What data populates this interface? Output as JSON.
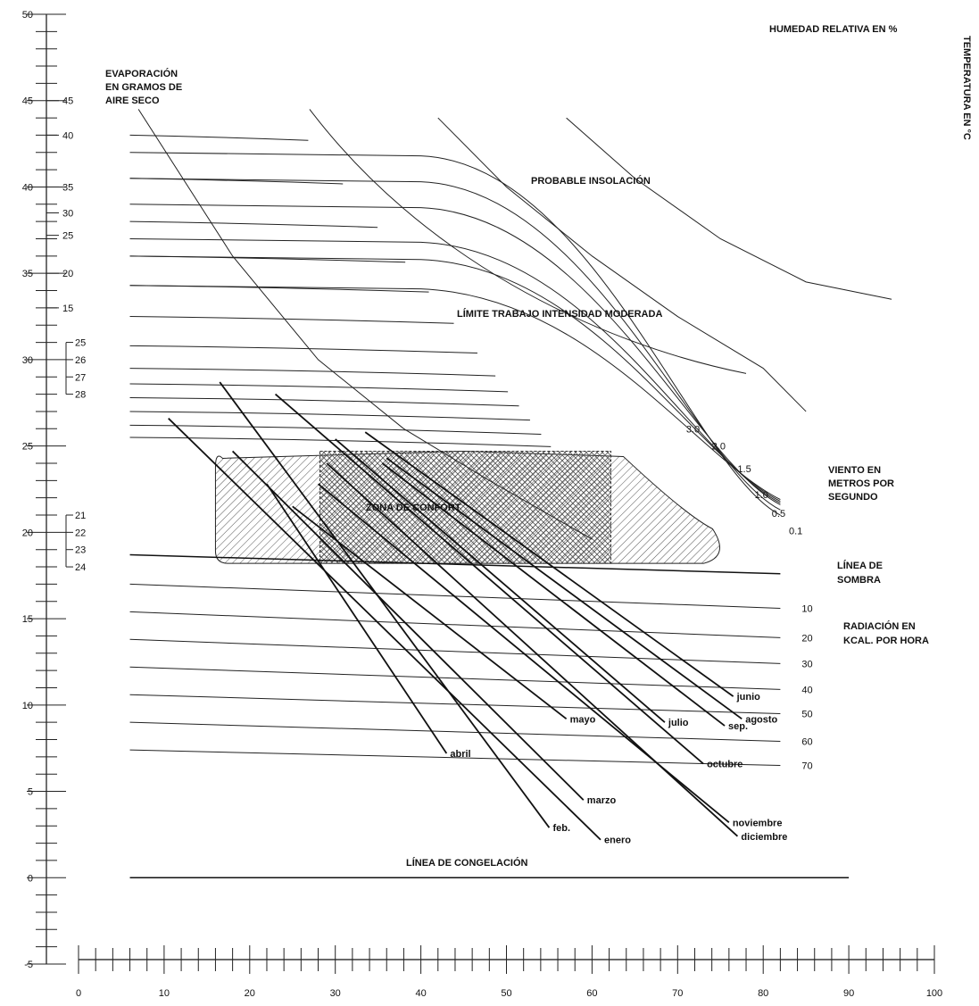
{
  "chart_data": {
    "type": "line",
    "title": "",
    "y_axis": {
      "ylim": [
        -5,
        50
      ],
      "ticks": [
        50,
        45,
        40,
        35,
        30,
        25,
        20,
        15,
        10,
        5,
        0,
        -5
      ]
    },
    "x_axis": {
      "xlim": [
        0,
        100
      ],
      "ticks": [
        0,
        10,
        20,
        30,
        40,
        50,
        60,
        70,
        80,
        90,
        100
      ]
    },
    "labels": {
      "top_right": "HUMEDAD RELATIVA EN  %",
      "right_vertical": "TEMPERATURA EN °C",
      "evaporation_lines": [
        "EVAPORACIÓN",
        "EN GRAMOS DE",
        "AIRE SECO"
      ],
      "insolation": "PROBABLE INSOLACIÓN",
      "work_limit": "LÍMITE TRABAJO INTENSIDAD MODERADA",
      "wind_lines": [
        "VIENTO EN",
        "METROS POR",
        "SEGUNDO"
      ],
      "shade_lines": [
        "LÍNEA DE",
        "SOMBRA"
      ],
      "radiation_lines": [
        "RADIACIÓN EN",
        "KCAL. POR HORA"
      ],
      "comfort": "ZONA DE CONFORT",
      "freezing": "LÍNEA DE CONGELACIÓN"
    },
    "evaporation_scale_upper": [
      45,
      40,
      35,
      30,
      25,
      20,
      15
    ],
    "evaporation_scale_upper_t": [
      45,
      43,
      40,
      38.5,
      37.2,
      35,
      33
    ],
    "evaporation_scale_lower": [
      25,
      26,
      27,
      28
    ],
    "evaporation_scale_lower_t": [
      31,
      30,
      29,
      28
    ],
    "evaporation_scale_bottom": [
      21,
      22,
      23,
      24
    ],
    "evaporation_scale_bottom_t": [
      21,
      20,
      19,
      18
    ],
    "wind_speeds": [
      "3.0",
      "2.0",
      "1.5",
      "1.0",
      "0.5",
      "0.1"
    ],
    "wind_curves": [
      {
        "start_t": 42,
        "end_h": 12,
        "end_t": 21,
        "label_h": 71,
        "label_t": 26
      },
      {
        "start_t": 40.5,
        "end_h": 12,
        "end_t": 21.3,
        "label_h": 74,
        "label_t": 25
      },
      {
        "start_t": 39,
        "end_h": 12,
        "end_t": 21.6,
        "label_h": 77,
        "label_t": 23.7
      },
      {
        "start_t": 37,
        "end_h": 12,
        "end_t": 21.7,
        "label_h": 79,
        "label_t": 22.2
      },
      {
        "start_t": 36,
        "end_h": 12,
        "end_t": 21.8,
        "label_h": 81,
        "label_t": 21.1
      },
      {
        "start_t": 34.3,
        "end_h": 12,
        "end_t": 21.9,
        "label_h": 83,
        "label_t": 20.1
      }
    ],
    "radiation_levels": [
      "10",
      "20",
      "30",
      "40",
      "50",
      "60",
      "70"
    ],
    "radiation_lines_t": [
      {
        "left": 17.0,
        "right": 15.6
      },
      {
        "left": 15.4,
        "right": 13.9
      },
      {
        "left": 13.8,
        "right": 12.4
      },
      {
        "left": 12.2,
        "right": 10.9
      },
      {
        "left": 10.6,
        "right": 9.5
      },
      {
        "left": 9.0,
        "right": 7.9
      },
      {
        "left": 7.4,
        "right": 6.5
      }
    ],
    "shade_line": {
      "left": 18.7,
      "right": 17.6
    },
    "comfort_zone": {
      "t_min": 18.2,
      "t_max": 24.7,
      "h_left": 16,
      "h_right": 72,
      "inner_left": 28.2,
      "inner_right": 62.2
    },
    "months": [
      {
        "name": "enero",
        "start": [
          10.5,
          26.6
        ],
        "end": [
          61,
          2.2
        ]
      },
      {
        "name": "feb.",
        "start": [
          16.5,
          28.7
        ],
        "end": [
          55,
          2.9
        ]
      },
      {
        "name": "marzo",
        "start": [
          18,
          24.7
        ],
        "end": [
          59,
          4.5
        ]
      },
      {
        "name": "abril",
        "start": [
          22,
          22.8
        ],
        "end": [
          43,
          7.2
        ]
      },
      {
        "name": "mayo",
        "start": [
          25,
          21.5
        ],
        "end": [
          57,
          9.2
        ]
      },
      {
        "name": "junio",
        "start": [
          33.5,
          25.8
        ],
        "end": [
          76.5,
          10.5
        ]
      },
      {
        "name": "julio",
        "start": [
          30,
          25.4
        ],
        "end": [
          68.5,
          9.0
        ]
      },
      {
        "name": "sep.",
        "start": [
          35.5,
          24.0
        ],
        "end": [
          75.5,
          8.8
        ]
      },
      {
        "name": "agosto",
        "start": [
          36,
          24.3
        ],
        "end": [
          77.5,
          9.2
        ]
      },
      {
        "name": "octubre",
        "start": [
          23,
          28.0
        ],
        "end": [
          73,
          6.6
        ]
      },
      {
        "name": "noviembre",
        "start": [
          28,
          22.8
        ],
        "end": [
          76,
          3.2
        ]
      },
      {
        "name": "diciembre",
        "start": [
          29,
          24.0
        ],
        "end": [
          77,
          2.4
        ]
      }
    ],
    "insolation_curves": [
      {
        "points": [
          [
            42,
            44
          ],
          [
            50,
            40
          ],
          [
            60,
            36
          ],
          [
            70,
            32.5
          ],
          [
            80,
            29.5
          ],
          [
            85,
            27
          ]
        ]
      },
      {
        "points": [
          [
            57,
            44
          ],
          [
            65,
            40.5
          ],
          [
            75,
            37
          ],
          [
            85,
            34.5
          ],
          [
            95,
            33.5
          ]
        ]
      }
    ],
    "diagonal_line": {
      "points": [
        [
          1,
          44.5
        ],
        [
          12,
          36
        ],
        [
          22,
          30
        ],
        [
          32,
          26
        ],
        [
          42,
          23
        ],
        [
          54,
          19.6
        ]
      ]
    }
  }
}
